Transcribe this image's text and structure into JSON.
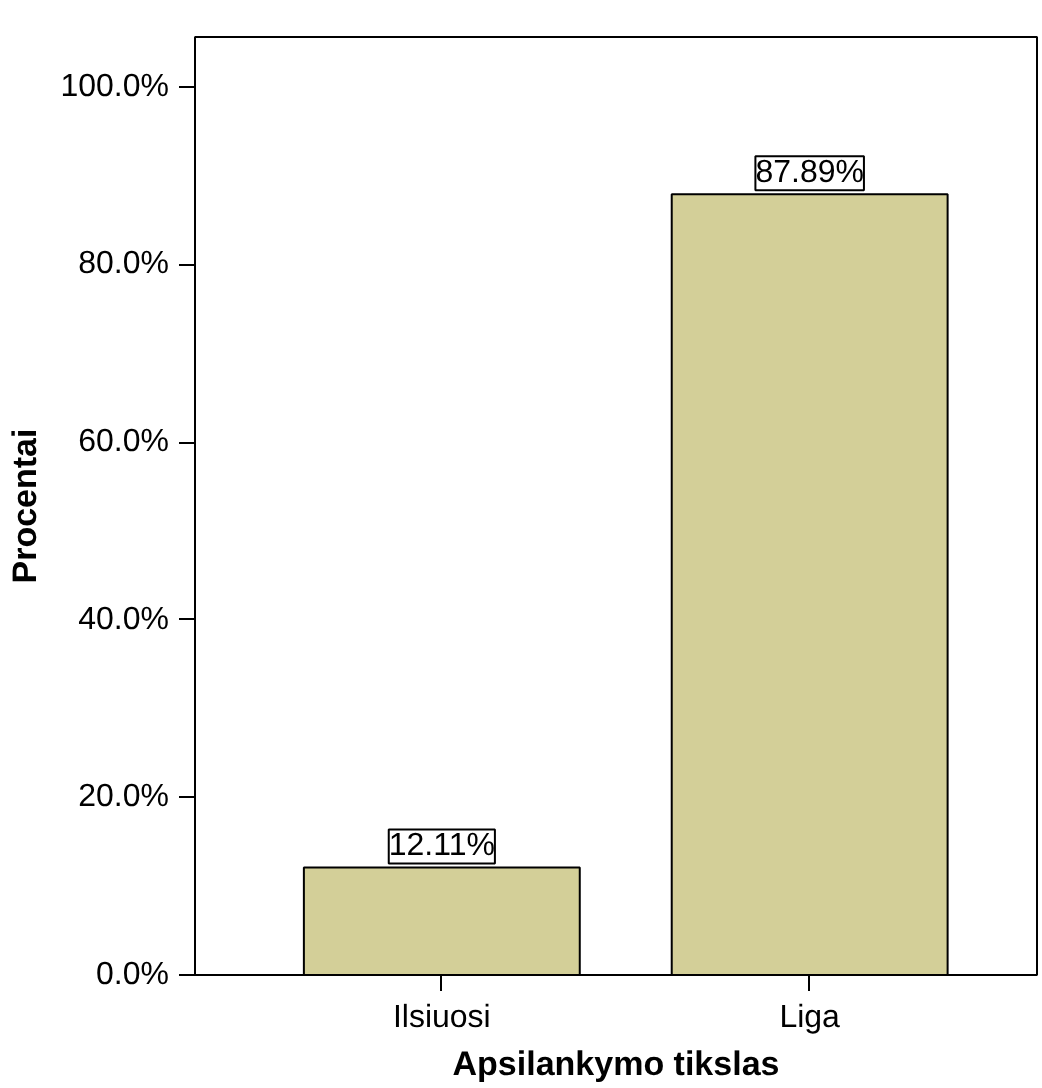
{
  "chart_data": {
    "type": "bar",
    "xlabel": "Apsilankymo tikslas",
    "ylabel": "Procentai",
    "categories": [
      "Ilsiuosi",
      "Liga"
    ],
    "values": [
      12.11,
      87.89
    ],
    "value_labels": [
      "12.11%",
      "87.89%"
    ],
    "color": "#d3cf98",
    "ylim": [
      0,
      105.6
    ],
    "yticks": [
      {
        "value": 0,
        "label": "0.0%"
      },
      {
        "value": 20,
        "label": "20.0%"
      },
      {
        "value": 40,
        "label": "40.0%"
      },
      {
        "value": 60,
        "label": "60.0%"
      },
      {
        "value": 80,
        "label": "80.0%"
      },
      {
        "value": 100,
        "label": "100.0%"
      }
    ],
    "grid": false
  }
}
